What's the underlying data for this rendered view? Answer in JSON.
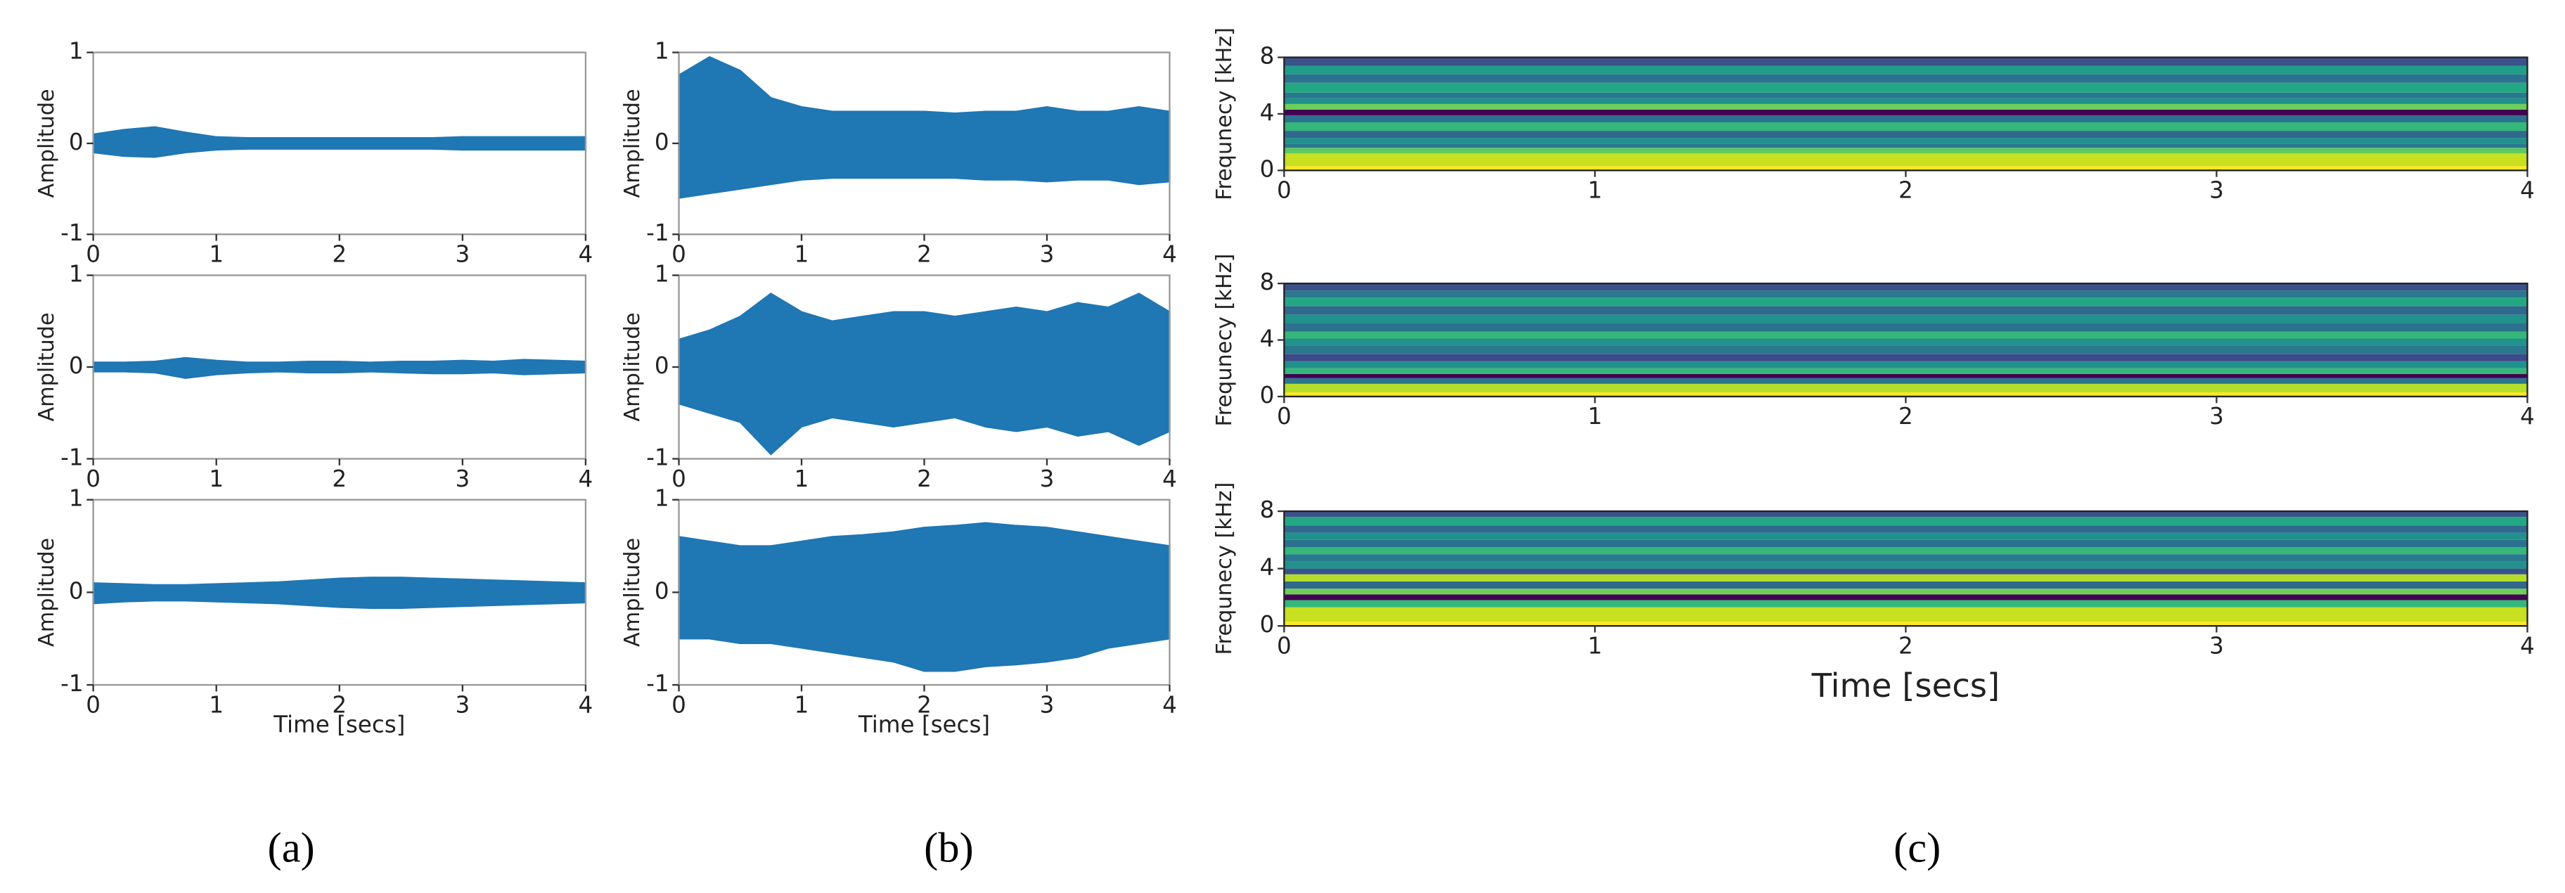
{
  "panel_labels": [
    "(a)",
    "(b)",
    "(c)"
  ],
  "chart_data": [
    {
      "type": "area",
      "ylabel": "Amplitude",
      "color": "#1f77b4",
      "xlim": [
        0,
        4
      ],
      "ylim": [
        -1,
        1
      ],
      "xticks": [
        0,
        1,
        2,
        3,
        4
      ],
      "yticks": [
        -1,
        0,
        1
      ],
      "x": [
        0,
        0.25,
        0.5,
        0.75,
        1,
        1.25,
        1.5,
        1.75,
        2,
        2.25,
        2.5,
        2.75,
        3,
        3.25,
        3.5,
        3.75,
        4
      ],
      "upper": [
        0.1,
        0.15,
        0.18,
        0.12,
        0.07,
        0.06,
        0.06,
        0.06,
        0.06,
        0.06,
        0.06,
        0.06,
        0.07,
        0.07,
        0.07,
        0.07,
        0.07
      ],
      "lower": [
        -0.1,
        -0.14,
        -0.15,
        -0.1,
        -0.07,
        -0.06,
        -0.06,
        -0.06,
        -0.06,
        -0.06,
        -0.06,
        -0.06,
        -0.07,
        -0.07,
        -0.07,
        -0.07,
        -0.07
      ]
    },
    {
      "type": "area",
      "ylabel": "Amplitude",
      "color": "#1f77b4",
      "xlim": [
        0,
        4
      ],
      "ylim": [
        -1,
        1
      ],
      "xticks": [
        0,
        1,
        2,
        3,
        4
      ],
      "yticks": [
        -1,
        0,
        1
      ],
      "x": [
        0,
        0.25,
        0.5,
        0.75,
        1,
        1.25,
        1.5,
        1.75,
        2,
        2.25,
        2.5,
        2.75,
        3,
        3.25,
        3.5,
        3.75,
        4
      ],
      "upper": [
        0.05,
        0.05,
        0.06,
        0.1,
        0.07,
        0.05,
        0.05,
        0.06,
        0.06,
        0.05,
        0.06,
        0.06,
        0.07,
        0.06,
        0.08,
        0.07,
        0.06
      ],
      "lower": [
        -0.05,
        -0.05,
        -0.06,
        -0.12,
        -0.08,
        -0.06,
        -0.05,
        -0.06,
        -0.06,
        -0.05,
        -0.06,
        -0.07,
        -0.07,
        -0.06,
        -0.08,
        -0.07,
        -0.06
      ]
    },
    {
      "type": "area",
      "ylabel": "Amplitude",
      "xlabel": "Time [secs]",
      "color": "#1f77b4",
      "xlim": [
        0,
        4
      ],
      "ylim": [
        -1,
        1
      ],
      "xticks": [
        0,
        1,
        2,
        3,
        4
      ],
      "yticks": [
        -1,
        0,
        1
      ],
      "x": [
        0,
        0.25,
        0.5,
        0.75,
        1,
        1.25,
        1.5,
        1.75,
        2,
        2.25,
        2.5,
        2.75,
        3,
        3.25,
        3.5,
        3.75,
        4
      ],
      "upper": [
        0.1,
        0.09,
        0.08,
        0.08,
        0.09,
        0.1,
        0.11,
        0.13,
        0.15,
        0.16,
        0.16,
        0.15,
        0.14,
        0.13,
        0.12,
        0.11,
        0.1
      ],
      "lower": [
        -0.12,
        -0.1,
        -0.09,
        -0.09,
        -0.1,
        -0.11,
        -0.12,
        -0.14,
        -0.16,
        -0.17,
        -0.17,
        -0.16,
        -0.15,
        -0.14,
        -0.13,
        -0.12,
        -0.11
      ]
    },
    {
      "type": "area",
      "ylabel": "Amplitude",
      "color": "#1f77b4",
      "xlim": [
        0,
        4
      ],
      "ylim": [
        -1,
        1
      ],
      "xticks": [
        0,
        1,
        2,
        3,
        4
      ],
      "yticks": [
        -1,
        0,
        1
      ],
      "x": [
        0,
        0.25,
        0.5,
        0.75,
        1,
        1.25,
        1.5,
        1.75,
        2,
        2.25,
        2.5,
        2.75,
        3,
        3.25,
        3.5,
        3.75,
        4
      ],
      "upper": [
        0.75,
        0.95,
        0.8,
        0.5,
        0.4,
        0.35,
        0.35,
        0.35,
        0.35,
        0.33,
        0.35,
        0.35,
        0.4,
        0.35,
        0.35,
        0.4,
        0.35
      ],
      "lower": [
        -0.6,
        -0.55,
        -0.5,
        -0.45,
        -0.4,
        -0.38,
        -0.38,
        -0.38,
        -0.38,
        -0.38,
        -0.4,
        -0.4,
        -0.42,
        -0.4,
        -0.4,
        -0.45,
        -0.42
      ]
    },
    {
      "type": "area",
      "ylabel": "Amplitude",
      "color": "#1f77b4",
      "xlim": [
        0,
        4
      ],
      "ylim": [
        -1,
        1
      ],
      "xticks": [
        0,
        1,
        2,
        3,
        4
      ],
      "yticks": [
        -1,
        0,
        1
      ],
      "x": [
        0,
        0.25,
        0.5,
        0.75,
        1,
        1.25,
        1.5,
        1.75,
        2,
        2.25,
        2.5,
        2.75,
        3,
        3.25,
        3.5,
        3.75,
        4
      ],
      "upper": [
        0.3,
        0.4,
        0.55,
        0.8,
        0.6,
        0.5,
        0.55,
        0.6,
        0.6,
        0.55,
        0.6,
        0.65,
        0.6,
        0.7,
        0.65,
        0.8,
        0.6
      ],
      "lower": [
        -0.4,
        -0.5,
        -0.6,
        -0.95,
        -0.65,
        -0.55,
        -0.6,
        -0.65,
        -0.6,
        -0.55,
        -0.65,
        -0.7,
        -0.65,
        -0.75,
        -0.7,
        -0.85,
        -0.7
      ]
    },
    {
      "type": "area",
      "ylabel": "Amplitude",
      "xlabel": "Time [secs]",
      "color": "#1f77b4",
      "xlim": [
        0,
        4
      ],
      "ylim": [
        -1,
        1
      ],
      "xticks": [
        0,
        1,
        2,
        3,
        4
      ],
      "yticks": [
        -1,
        0,
        1
      ],
      "x": [
        0,
        0.25,
        0.5,
        0.75,
        1,
        1.25,
        1.5,
        1.75,
        2,
        2.25,
        2.5,
        2.75,
        3,
        3.25,
        3.5,
        3.75,
        4
      ],
      "upper": [
        0.6,
        0.55,
        0.5,
        0.5,
        0.55,
        0.6,
        0.62,
        0.65,
        0.7,
        0.72,
        0.75,
        0.72,
        0.7,
        0.65,
        0.6,
        0.55,
        0.5
      ],
      "lower": [
        -0.5,
        -0.5,
        -0.55,
        -0.55,
        -0.6,
        -0.65,
        -0.7,
        -0.75,
        -0.85,
        -0.85,
        -0.8,
        -0.78,
        -0.75,
        -0.7,
        -0.6,
        -0.55,
        -0.5
      ]
    },
    {
      "type": "heatmap",
      "ylabel": "Frequnecy [kHz]",
      "xlim": [
        0,
        4
      ],
      "ylim": [
        0,
        8
      ],
      "xticks": [
        0,
        1,
        2,
        3,
        4
      ],
      "yticks": [
        0,
        4,
        8
      ],
      "bands": [
        0,
        0.3,
        1.2,
        1.6,
        1.9,
        2.3,
        2.8,
        3.4,
        3.9,
        4.3,
        4.7,
        5.1,
        5.5,
        6.2,
        6.8,
        7.4,
        8
      ],
      "colors": [
        "#fde725",
        "#c8e020",
        "#5ec962",
        "#2a788e",
        "#21918c",
        "#31688e",
        "#35b779",
        "#2c728e",
        "#440154",
        "#6ece58",
        "#21918c",
        "#2a788e",
        "#23a884",
        "#2c728e",
        "#1f9e89",
        "#3b528b"
      ]
    },
    {
      "type": "heatmap",
      "ylabel": "Frequnecy [kHz]",
      "xlim": [
        0,
        4
      ],
      "ylim": [
        0,
        8
      ],
      "xticks": [
        0,
        1,
        2,
        3,
        4
      ],
      "yticks": [
        0,
        4,
        8
      ],
      "bands": [
        0,
        0.3,
        0.9,
        1.3,
        1.6,
        2.0,
        2.5,
        3.0,
        3.6,
        4.1,
        4.6,
        5.2,
        5.8,
        6.4,
        7.0,
        7.5,
        8
      ],
      "colors": [
        "#fde725",
        "#b5de2b",
        "#2a788e",
        "#440154",
        "#35b779",
        "#21918c",
        "#3e4989",
        "#2a788e",
        "#21918c",
        "#35b779",
        "#2c728e",
        "#21918c",
        "#31688e",
        "#23a884",
        "#2a788e",
        "#3b528b"
      ]
    },
    {
      "type": "heatmap",
      "ylabel": "Frequnecy [kHz]",
      "xlabel": "Time [secs]",
      "xlim": [
        0,
        4
      ],
      "ylim": [
        0,
        8
      ],
      "xticks": [
        0,
        1,
        2,
        3,
        4
      ],
      "yticks": [
        0,
        4,
        8
      ],
      "bands": [
        0,
        0.3,
        1.3,
        1.8,
        2.2,
        2.6,
        3.1,
        3.6,
        4.0,
        4.5,
        5.0,
        5.5,
        6.0,
        6.5,
        7.0,
        7.6,
        8
      ],
      "colors": [
        "#fde725",
        "#c8e020",
        "#35b779",
        "#440154",
        "#6ece58",
        "#31688e",
        "#b5de2b",
        "#3b528b",
        "#21918c",
        "#2a788e",
        "#35b779",
        "#2c728e",
        "#21918c",
        "#31688e",
        "#23a884",
        "#3b528b"
      ]
    }
  ]
}
